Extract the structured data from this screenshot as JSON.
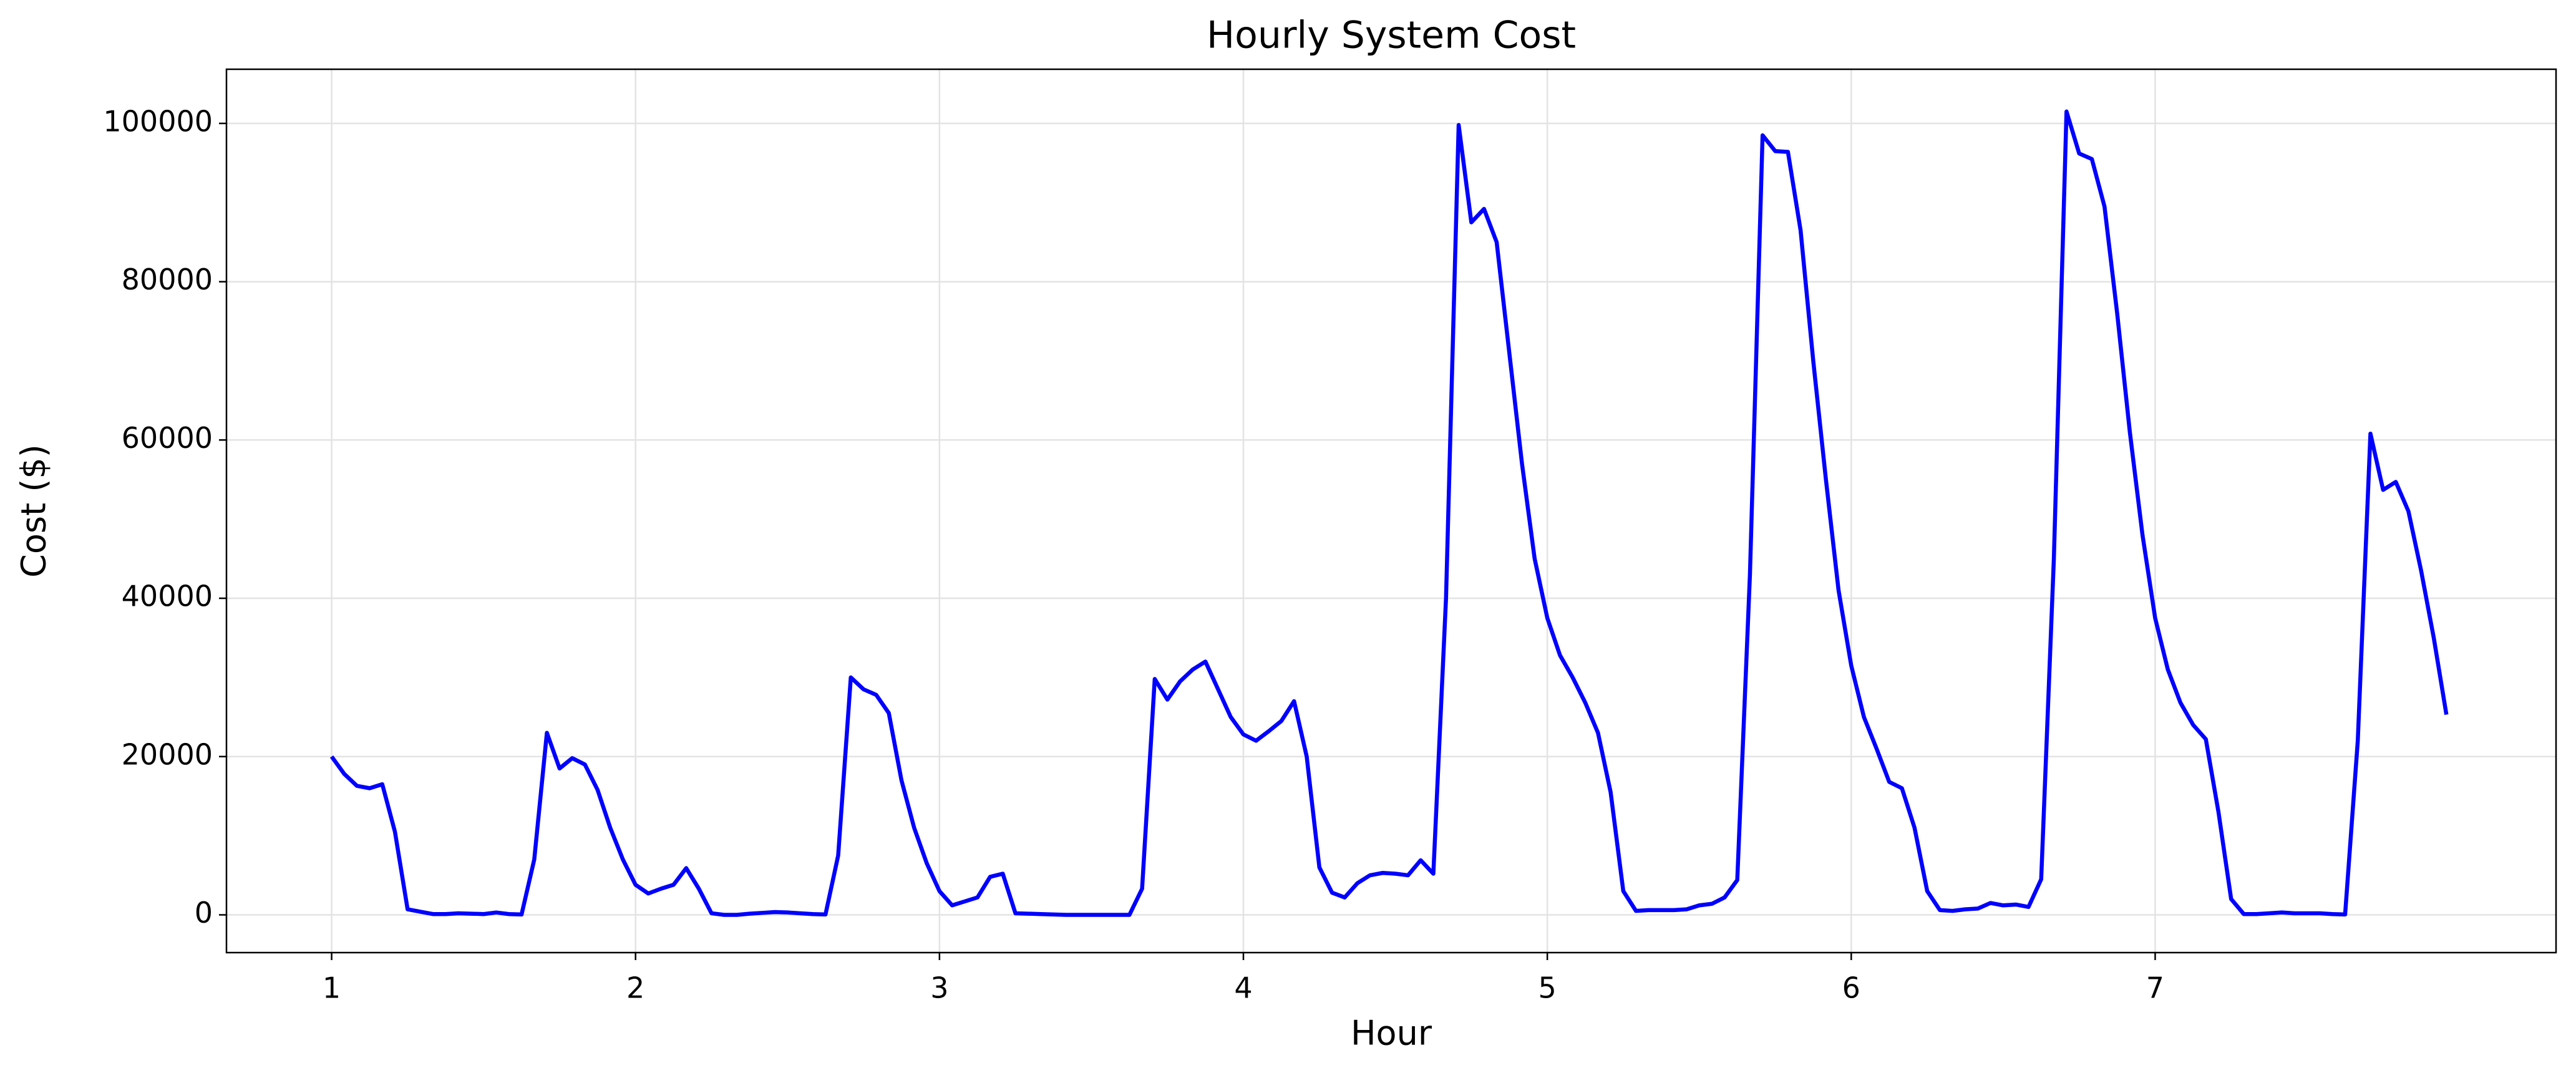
{
  "chart_data": {
    "type": "line",
    "title": "Hourly System Cost",
    "xlabel": "Hour",
    "ylabel": "Cost ($)",
    "x": [
      1,
      1.0417,
      1.0833,
      1.125,
      1.1667,
      1.2083,
      1.25,
      1.2917,
      1.3333,
      1.375,
      1.4167,
      1.4583,
      1.5,
      1.5417,
      1.5833,
      1.625,
      1.6667,
      1.7083,
      1.75,
      1.7917,
      1.8333,
      1.875,
      1.9167,
      1.9583,
      2,
      2.0417,
      2.0833,
      2.125,
      2.1667,
      2.2083,
      2.25,
      2.2917,
      2.3333,
      2.375,
      2.4167,
      2.4583,
      2.5,
      2.5417,
      2.5833,
      2.625,
      2.6667,
      2.7083,
      2.75,
      2.7917,
      2.8333,
      2.875,
      2.9167,
      2.9583,
      3,
      3.0417,
      3.0833,
      3.125,
      3.1667,
      3.2083,
      3.25,
      3.2917,
      3.3333,
      3.375,
      3.4167,
      3.4583,
      3.5,
      3.5417,
      3.5833,
      3.625,
      3.6667,
      3.7083,
      3.75,
      3.7917,
      3.8333,
      3.875,
      3.9167,
      3.9583,
      4,
      4.0417,
      4.0833,
      4.125,
      4.1667,
      4.2083,
      4.25,
      4.2917,
      4.3333,
      4.375,
      4.4167,
      4.4583,
      4.5,
      4.5417,
      4.5833,
      4.625,
      4.6667,
      4.7083,
      4.75,
      4.7917,
      4.8333,
      4.875,
      4.9167,
      4.9583,
      5,
      5.0417,
      5.0833,
      5.125,
      5.1667,
      5.2083,
      5.25,
      5.2917,
      5.3333,
      5.375,
      5.4167,
      5.4583,
      5.5,
      5.5417,
      5.5833,
      5.625,
      5.6667,
      5.7083,
      5.75,
      5.7917,
      5.8333,
      5.875,
      5.9167,
      5.9583,
      6,
      6.0417,
      6.0833,
      6.125,
      6.1667,
      6.2083,
      6.25,
      6.2917,
      6.3333,
      6.375,
      6.4167,
      6.4583,
      6.5,
      6.5417,
      6.5833,
      6.625,
      6.6667,
      6.7083,
      6.75,
      6.7917,
      6.8333,
      6.875,
      6.9167,
      6.9583,
      7,
      7.0417,
      7.0833,
      7.125,
      7.1667,
      7.2083,
      7.25,
      7.2917,
      7.3333,
      7.375,
      7.4167,
      7.4583,
      7.5,
      7.5417,
      7.5833,
      7.625,
      7.6667,
      7.7083,
      7.75,
      7.7917,
      7.8333,
      7.875,
      7.9167,
      7.9583
    ],
    "values": [
      20000,
      17800,
      16300,
      16000,
      16500,
      10500,
      700,
      400,
      100,
      100,
      200,
      150,
      100,
      300,
      100,
      50,
      7000,
      23000,
      18500,
      19800,
      19000,
      15800,
      11000,
      7000,
      3800,
      2700,
      3300,
      3800,
      5900,
      3300,
      200,
      0,
      0,
      150,
      250,
      350,
      300,
      200,
      100,
      50,
      7500,
      30000,
      28500,
      27800,
      25500,
      17000,
      11000,
      6500,
      3000,
      1200,
      1700,
      2200,
      4800,
      5200,
      200,
      150,
      100,
      50,
      0,
      0,
      0,
      0,
      0,
      0,
      3300,
      29800,
      27200,
      29500,
      31000,
      32000,
      28500,
      25000,
      22800,
      22000,
      23200,
      24500,
      27000,
      20000,
      6000,
      2800,
      2200,
      4000,
      5000,
      5300,
      5200,
      5000,
      6900,
      5200,
      40000,
      99800,
      87500,
      89200,
      85000,
      71000,
      57000,
      45000,
      37500,
      32800,
      30000,
      26800,
      23000,
      15500,
      3000,
      500,
      600,
      600,
      600,
      700,
      1200,
      1400,
      2200,
      4400,
      43000,
      98500,
      96500,
      96400,
      86500,
      70000,
      55000,
      41000,
      31500,
      25000,
      21000,
      16800,
      16000,
      11000,
      3000,
      600,
      500,
      700,
      800,
      1500,
      1200,
      1300,
      1000,
      4500,
      45000,
      101500,
      96200,
      95500,
      89500,
      76000,
      61000,
      48000,
      37500,
      31000,
      26800,
      24000,
      22200,
      13000,
      2000,
      100,
      100,
      200,
      300,
      200,
      200,
      200,
      100,
      50,
      22000,
      60800,
      53700,
      54700,
      51000,
      43500,
      35000,
      25300
    ],
    "color": "#0000ff",
    "xlim": [
      0.654,
      8.319
    ],
    "xticks": [
      1,
      2,
      3,
      4,
      5,
      6,
      7
    ],
    "ylim": [
      -4770,
      106845
    ],
    "yticks": [
      0,
      20000,
      40000,
      60000,
      80000,
      100000
    ],
    "grid": true
  }
}
